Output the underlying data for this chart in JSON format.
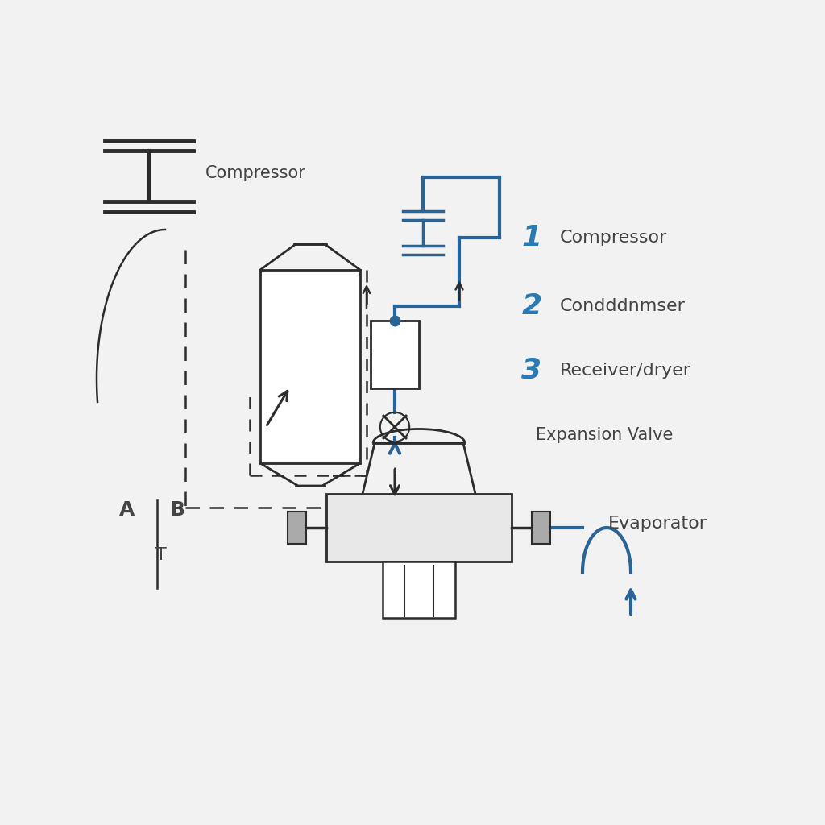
{
  "bg_color": "#f2f2f2",
  "line_dark": "#2c2c2c",
  "line_blue": "#2a6496",
  "label_blue": "#2a7ab5",
  "label_dark": "#444444",
  "labels": {
    "compressor_symbol": "Compressor",
    "num1": "1",
    "num2": "2",
    "num3": "3",
    "label1": "Compressor",
    "label2": "Condddnmser",
    "label3": "Receiver/dryer",
    "label4": "Expansion Valve",
    "label5": "Evaporator",
    "A": "A",
    "B": "B",
    "T": "T"
  }
}
